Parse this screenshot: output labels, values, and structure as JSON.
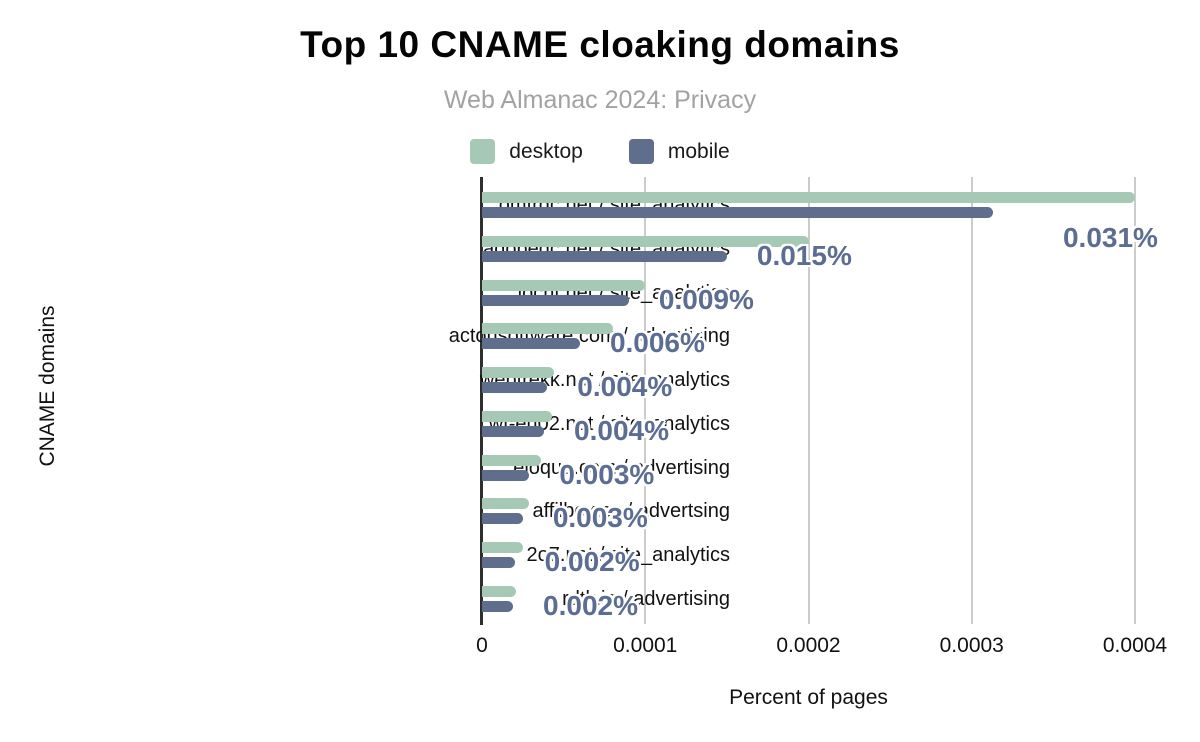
{
  "page": {
    "title": "Top 10 CNAME cloaking domains",
    "subtitle": "Web Almanac 2024: Privacy"
  },
  "legend": [
    {
      "label": "desktop",
      "color": "#a6c9b6"
    },
    {
      "label": "mobile",
      "color": "#5f6e8c"
    }
  ],
  "axes": {
    "x_title": "Percent of pages",
    "y_title": "CNAME domains"
  },
  "colors": {
    "desktop_bar": "#a6c9b6",
    "mobile_bar": "#5f6e8c",
    "value_label": "#5b6d92",
    "gridline": "#cccccc",
    "axis_line": "#2e2e2e"
  },
  "chart_data": {
    "type": "bar",
    "orientation": "horizontal",
    "title": "Top 10 CNAME cloaking domains",
    "subtitle": "Web Almanac 2024: Privacy",
    "xlabel": "Percent of pages",
    "ylabel": "CNAME domains",
    "xlim": [
      0,
      0.0004
    ],
    "xticks": [
      "0",
      "0.0001",
      "0.0002",
      "0.0003",
      "0.0004"
    ],
    "grid": true,
    "legend_position": "top",
    "categories": [
      "omtrdc.net / site_analytics",
      "adobedc.net / site_analytics",
      "iocnt.net / site_analytics",
      "actonsoftware.com / advertising",
      "webtrekk.net / site_analytics",
      "wt-eu02.net / site_analytics",
      "eloqua.com / advertising",
      "affilbox.cz / advertsing",
      "2o7.net / site_analytics",
      "rdtk.io / advertising"
    ],
    "series": [
      {
        "name": "desktop",
        "values": [
          0.0004,
          0.0002,
          0.0001,
          8e-05,
          4.4e-05,
          4.3e-05,
          3.6e-05,
          2.9e-05,
          2.5e-05,
          2.1e-05
        ]
      },
      {
        "name": "mobile",
        "values": [
          0.000313,
          0.00015,
          9e-05,
          6e-05,
          4e-05,
          3.8e-05,
          2.9e-05,
          2.5e-05,
          2e-05,
          1.9e-05
        ]
      }
    ],
    "data_labels": [
      "0.031%",
      "0.015%",
      "0.009%",
      "0.006%",
      "0.004%",
      "0.004%",
      "0.003%",
      "0.003%",
      "0.002%",
      "0.002%"
    ],
    "data_label_series": "mobile"
  }
}
